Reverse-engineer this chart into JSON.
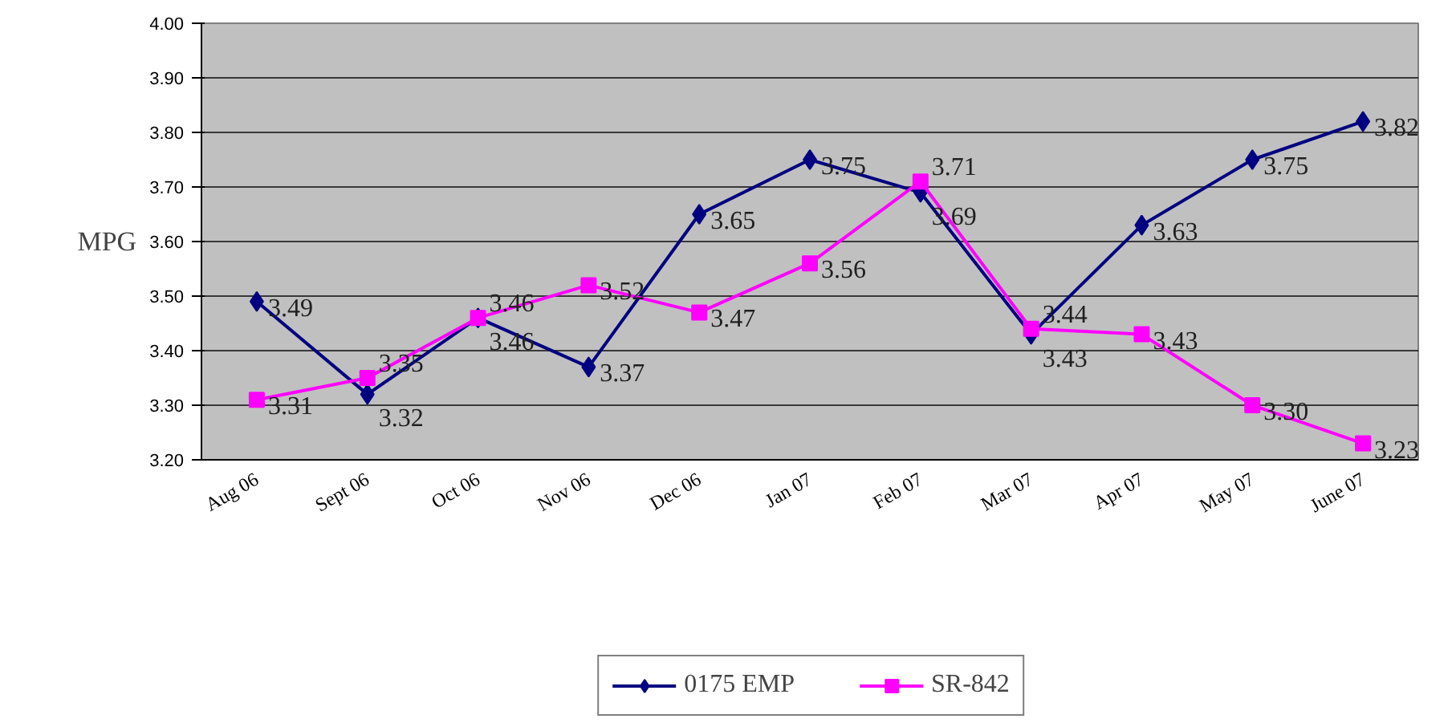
{
  "chart_data": {
    "type": "line",
    "ylabel": "MPG",
    "categories": [
      "Aug 06",
      "Sept 06",
      "Oct 06",
      "Nov 06",
      "Dec 06",
      "Jan 07",
      "Feb 07",
      "Mar 07",
      "Apr 07",
      "May 07",
      "June 07"
    ],
    "series": [
      {
        "name": "0175 EMP",
        "color": "#000080",
        "marker": "diamond",
        "values": [
          3.49,
          3.32,
          3.46,
          3.37,
          3.65,
          3.75,
          3.69,
          3.43,
          3.63,
          3.75,
          3.82
        ],
        "value_labels": [
          "3.49",
          "3.32",
          "3.46",
          "3.37",
          "3.65",
          "3.75",
          "3.69",
          "3.43",
          "3.63",
          "3.75",
          "3.82"
        ]
      },
      {
        "name": "SR-842",
        "color": "#ff00ff",
        "marker": "square",
        "values": [
          3.31,
          3.35,
          3.46,
          3.52,
          3.47,
          3.56,
          3.71,
          3.44,
          3.43,
          3.3,
          3.23
        ],
        "value_labels": [
          "3.31",
          "3.35",
          "3.46",
          "3.52",
          "3.47",
          "3.56",
          "3.71",
          "3.44",
          "3.43",
          "3.30",
          "3.23"
        ]
      }
    ],
    "ylim": [
      3.2,
      4.0
    ],
    "yticks": [
      {
        "value": 3.2,
        "label": "3.20"
      },
      {
        "value": 3.3,
        "label": "3.30"
      },
      {
        "value": 3.4,
        "label": "3.40"
      },
      {
        "value": 3.5,
        "label": "3.50"
      },
      {
        "value": 3.6,
        "label": "3.60"
      },
      {
        "value": 3.7,
        "label": "3.70"
      },
      {
        "value": 3.8,
        "label": "3.80"
      },
      {
        "value": 3.9,
        "label": "3.90"
      },
      {
        "value": 4.0,
        "label": "4.00"
      }
    ],
    "grid": "y",
    "legend": "bottom"
  }
}
